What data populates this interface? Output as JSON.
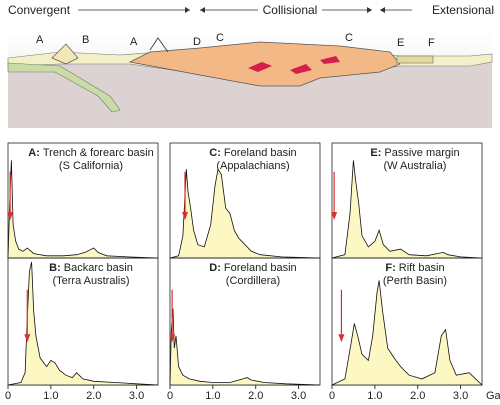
{
  "diagram": {
    "phases": [
      "Convergent",
      "Collisional",
      "Extensional"
    ],
    "labels": [
      "A",
      "B",
      "A",
      "D",
      "C",
      "C",
      "E",
      "F"
    ]
  },
  "chart_data": [
    {
      "type": "area",
      "label": "A:",
      "title": "Trench & forearc basin",
      "subtitle": "(S California)",
      "color": "#fdf7c3",
      "arrow_color": "#d8302f",
      "x": [
        0,
        0.05,
        0.08,
        0.12,
        0.18,
        0.25,
        0.35,
        0.45,
        0.6,
        0.9,
        1.3,
        1.6,
        1.8,
        1.9,
        2.0,
        2.1,
        2.3,
        2.8,
        3.5
      ],
      "values": [
        0,
        60,
        88,
        30,
        15,
        8,
        6,
        9,
        4,
        2,
        2,
        3,
        5,
        7,
        9,
        5,
        2,
        1,
        0
      ],
      "arrow_x": 0.05,
      "xlim": [
        0,
        3.5
      ],
      "ylim": [
        0,
        100
      ]
    },
    {
      "type": "area",
      "label": "B:",
      "title": "Backarc basin",
      "subtitle": "(Terra Australis)",
      "color": "#fdf7c3",
      "arrow_color": "#d8302f",
      "x": [
        0,
        0.3,
        0.4,
        0.45,
        0.5,
        0.55,
        0.6,
        0.65,
        0.75,
        0.9,
        1.0,
        1.1,
        1.2,
        1.35,
        1.5,
        1.6,
        1.75,
        2.0,
        2.5,
        3.0,
        3.5
      ],
      "values": [
        0,
        2,
        10,
        55,
        92,
        100,
        60,
        40,
        22,
        15,
        20,
        18,
        12,
        8,
        6,
        10,
        5,
        3,
        2,
        1,
        0
      ],
      "arrow_x": 0.45,
      "xlim": [
        0,
        3.5
      ],
      "ylim": [
        0,
        100
      ],
      "xticks": [
        0,
        {
          "value": 1,
          "label": "1.0"
        },
        {
          "value": 2,
          "label": "2.0"
        },
        {
          "value": 3,
          "label": "3.0"
        }
      ]
    },
    {
      "type": "area",
      "label": "C:",
      "title": "Foreland basin",
      "subtitle": "(Appalachians)",
      "color": "#fdf7c3",
      "arrow_color": "#d8302f",
      "x": [
        0,
        0.2,
        0.3,
        0.38,
        0.42,
        0.48,
        0.55,
        0.65,
        0.8,
        0.95,
        1.05,
        1.12,
        1.2,
        1.3,
        1.4,
        1.5,
        1.6,
        1.75,
        1.9,
        2.1,
        2.6,
        3.5
      ],
      "values": [
        0,
        2,
        20,
        80,
        60,
        45,
        25,
        12,
        10,
        30,
        65,
        80,
        75,
        45,
        40,
        25,
        18,
        12,
        6,
        3,
        1,
        0
      ],
      "arrow_x": 0.35,
      "xlim": [
        0,
        3.5
      ],
      "ylim": [
        0,
        100
      ]
    },
    {
      "type": "area",
      "label": "D:",
      "title": "Foreland basin",
      "subtitle": "(Cordillera)",
      "color": "#fdf7c3",
      "arrow_color": "#d8302f",
      "x": [
        0,
        0.03,
        0.07,
        0.1,
        0.14,
        0.2,
        0.3,
        0.45,
        0.7,
        1.0,
        1.4,
        1.7,
        1.8,
        1.9,
        2.2,
        2.7,
        3.5
      ],
      "values": [
        0,
        45,
        62,
        30,
        40,
        15,
        8,
        5,
        3,
        2,
        2,
        5,
        6,
        4,
        2,
        1,
        0
      ],
      "arrow_x": 0.05,
      "xlim": [
        0,
        3.5
      ],
      "ylim": [
        0,
        100
      ],
      "xticks": [
        0,
        {
          "value": 1,
          "label": "1.0"
        },
        {
          "value": 2,
          "label": "2.0"
        },
        {
          "value": 3,
          "label": "3.0"
        }
      ]
    },
    {
      "type": "area",
      "label": "E:",
      "title": "Passive margin",
      "subtitle": "(W Australia)",
      "color": "#fdf7c3",
      "arrow_color": "#d8302f",
      "x": [
        0,
        0.3,
        0.42,
        0.5,
        0.55,
        0.62,
        0.7,
        0.85,
        1.0,
        1.1,
        1.2,
        1.35,
        1.6,
        1.8,
        2.2,
        2.6,
        2.7,
        3.0,
        3.5
      ],
      "values": [
        0,
        3,
        40,
        88,
        70,
        50,
        20,
        10,
        15,
        25,
        12,
        6,
        8,
        3,
        2,
        5,
        3,
        1,
        0
      ],
      "arrow_x": 0.05,
      "xlim": [
        0,
        3.5
      ],
      "ylim": [
        0,
        100
      ]
    },
    {
      "type": "area",
      "label": "F:",
      "title": "Rift basin",
      "subtitle": "(Perth Basin)",
      "color": "#fdf7c3",
      "arrow_color": "#d8302f",
      "x": [
        0,
        0.3,
        0.45,
        0.52,
        0.6,
        0.7,
        0.85,
        0.95,
        1.05,
        1.1,
        1.18,
        1.3,
        1.45,
        1.6,
        1.8,
        2.1,
        2.4,
        2.55,
        2.65,
        2.75,
        2.9,
        3.2,
        3.5
      ],
      "values": [
        0,
        5,
        35,
        50,
        40,
        25,
        20,
        40,
        75,
        85,
        60,
        30,
        22,
        15,
        8,
        5,
        10,
        40,
        45,
        20,
        8,
        10,
        0
      ],
      "arrow_x": 0.22,
      "xlim": [
        0,
        3.5
      ],
      "ylim": [
        0,
        100
      ],
      "xticks": [
        0,
        {
          "value": 1,
          "label": "1.0"
        },
        {
          "value": 2,
          "label": "2.0"
        },
        {
          "value": 3,
          "label": "3.0"
        }
      ],
      "x_axis_label": "Ga"
    }
  ]
}
